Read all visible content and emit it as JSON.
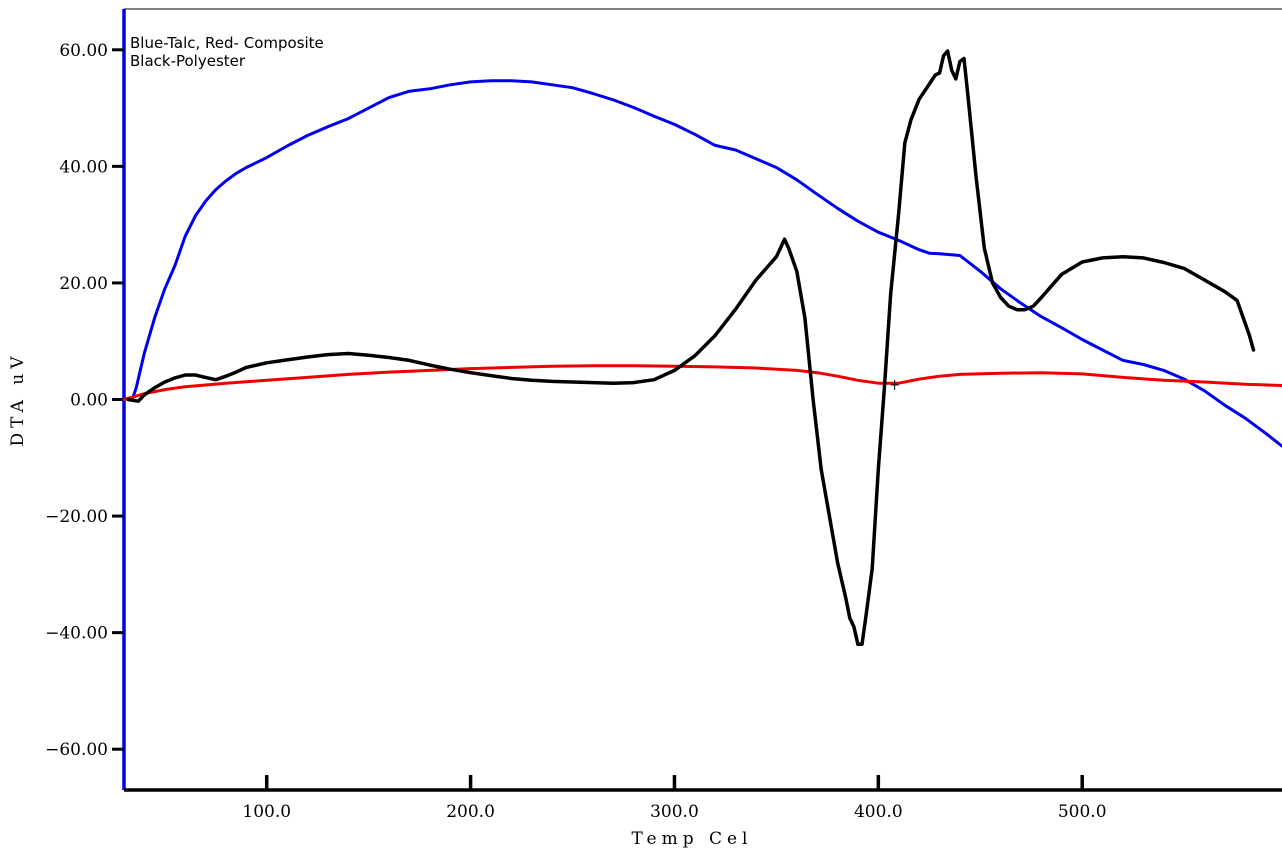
{
  "chart_data": {
    "type": "line",
    "title": "",
    "xlabel": "Temp Cel",
    "ylabel": "DTA uV",
    "xlim": [
      30,
      598
    ],
    "ylim": [
      -67,
      67
    ],
    "x_ticks": [
      100,
      200,
      300,
      400,
      500
    ],
    "x_tick_labels": [
      "100.0",
      "200.0",
      "300.0",
      "400.0",
      "500.0"
    ],
    "y_ticks": [
      60,
      40,
      20,
      0,
      -20,
      -40,
      -60
    ],
    "y_tick_labels": [
      "60.00",
      "40.00",
      "20.00",
      "0.00",
      "−20.00",
      "−40.00",
      "−60.00"
    ],
    "grid": false,
    "legend_lines": [
      "Blue-Talc, Red- Composite",
      "Black-Polyester"
    ],
    "legend_position": "top-left",
    "series": [
      {
        "color": "#0000ee",
        "points": [
          [
            34,
            0
          ],
          [
            36,
            2
          ],
          [
            40,
            8
          ],
          [
            45,
            14
          ],
          [
            50,
            19
          ],
          [
            55,
            23
          ],
          [
            60,
            28
          ],
          [
            65,
            31.5
          ],
          [
            70,
            34
          ],
          [
            75,
            36
          ],
          [
            80,
            37.5
          ],
          [
            85,
            38.8
          ],
          [
            90,
            39.8
          ],
          [
            100,
            41.5
          ],
          [
            110,
            43.5
          ],
          [
            120,
            45.3
          ],
          [
            130,
            46.8
          ],
          [
            140,
            48.2
          ],
          [
            150,
            50
          ],
          [
            160,
            51.8
          ],
          [
            170,
            52.9
          ],
          [
            180,
            53.3
          ],
          [
            190,
            54
          ],
          [
            200,
            54.5
          ],
          [
            210,
            54.7
          ],
          [
            220,
            54.7
          ],
          [
            230,
            54.5
          ],
          [
            240,
            54
          ],
          [
            250,
            53.5
          ],
          [
            260,
            52.5
          ],
          [
            270,
            51.4
          ],
          [
            280,
            50.1
          ],
          [
            290,
            48.6
          ],
          [
            300,
            47.2
          ],
          [
            310,
            45.5
          ],
          [
            320,
            43.6
          ],
          [
            330,
            42.8
          ],
          [
            340,
            41.3
          ],
          [
            350,
            39.8
          ],
          [
            360,
            37.7
          ],
          [
            370,
            35.2
          ],
          [
            380,
            32.8
          ],
          [
            390,
            30.6
          ],
          [
            400,
            28.7
          ],
          [
            410,
            27.3
          ],
          [
            420,
            25.7
          ],
          [
            425,
            25.1
          ],
          [
            430,
            25
          ],
          [
            440,
            24.7
          ],
          [
            450,
            22
          ],
          [
            460,
            19
          ],
          [
            470,
            16.5
          ],
          [
            480,
            14.2
          ],
          [
            490,
            12.3
          ],
          [
            500,
            10.3
          ],
          [
            510,
            8.5
          ],
          [
            520,
            6.7
          ],
          [
            530,
            6
          ],
          [
            540,
            5
          ],
          [
            550,
            3.5
          ],
          [
            560,
            1.5
          ],
          [
            570,
            -1
          ],
          [
            580,
            -3.2
          ],
          [
            590,
            -5.8
          ],
          [
            598,
            -8
          ]
        ]
      },
      {
        "color": "#ee0000",
        "points": [
          [
            30,
            0
          ],
          [
            40,
            1
          ],
          [
            50,
            1.7
          ],
          [
            60,
            2.2
          ],
          [
            80,
            2.8
          ],
          [
            100,
            3.3
          ],
          [
            120,
            3.8
          ],
          [
            140,
            4.3
          ],
          [
            160,
            4.7
          ],
          [
            180,
            5
          ],
          [
            200,
            5.3
          ],
          [
            220,
            5.5
          ],
          [
            240,
            5.7
          ],
          [
            260,
            5.8
          ],
          [
            280,
            5.8
          ],
          [
            300,
            5.7
          ],
          [
            320,
            5.6
          ],
          [
            340,
            5.4
          ],
          [
            360,
            5
          ],
          [
            370,
            4.6
          ],
          [
            380,
            4
          ],
          [
            390,
            3.3
          ],
          [
            400,
            2.8
          ],
          [
            410,
            2.8
          ],
          [
            420,
            3.5
          ],
          [
            430,
            4
          ],
          [
            440,
            4.3
          ],
          [
            460,
            4.5
          ],
          [
            480,
            4.6
          ],
          [
            500,
            4.4
          ],
          [
            520,
            3.8
          ],
          [
            540,
            3.3
          ],
          [
            560,
            3
          ],
          [
            580,
            2.6
          ],
          [
            598,
            2.4
          ]
        ]
      },
      {
        "color": "#000000",
        "points": [
          [
            32,
            0
          ],
          [
            37,
            -0.3
          ],
          [
            40,
            0.8
          ],
          [
            45,
            2
          ],
          [
            50,
            3
          ],
          [
            55,
            3.7
          ],
          [
            60,
            4.2
          ],
          [
            65,
            4.2
          ],
          [
            70,
            3.8
          ],
          [
            75,
            3.4
          ],
          [
            80,
            4
          ],
          [
            85,
            4.7
          ],
          [
            90,
            5.5
          ],
          [
            100,
            6.3
          ],
          [
            110,
            6.8
          ],
          [
            120,
            7.3
          ],
          [
            130,
            7.7
          ],
          [
            140,
            7.9
          ],
          [
            150,
            7.6
          ],
          [
            160,
            7.2
          ],
          [
            170,
            6.7
          ],
          [
            180,
            5.9
          ],
          [
            190,
            5.2
          ],
          [
            200,
            4.6
          ],
          [
            210,
            4.1
          ],
          [
            220,
            3.6
          ],
          [
            230,
            3.3
          ],
          [
            240,
            3.1
          ],
          [
            250,
            3
          ],
          [
            260,
            2.9
          ],
          [
            270,
            2.8
          ],
          [
            280,
            2.9
          ],
          [
            290,
            3.4
          ],
          [
            300,
            5
          ],
          [
            310,
            7.5
          ],
          [
            320,
            11
          ],
          [
            330,
            15.5
          ],
          [
            340,
            20.5
          ],
          [
            345,
            22.5
          ],
          [
            350,
            24.5
          ],
          [
            352,
            26
          ],
          [
            354,
            27.5
          ],
          [
            356,
            26
          ],
          [
            360,
            22
          ],
          [
            364,
            14
          ],
          [
            368,
            0
          ],
          [
            372,
            -12
          ],
          [
            376,
            -20
          ],
          [
            380,
            -28
          ],
          [
            384,
            -34
          ],
          [
            386,
            -37.5
          ],
          [
            388,
            -39
          ],
          [
            390,
            -42
          ],
          [
            392,
            -42
          ],
          [
            394,
            -37
          ],
          [
            397,
            -29
          ],
          [
            400,
            -12
          ],
          [
            403,
            2
          ],
          [
            406,
            18
          ],
          [
            410,
            32
          ],
          [
            413,
            44
          ],
          [
            416,
            48
          ],
          [
            420,
            51.5
          ],
          [
            424,
            53.6
          ],
          [
            428,
            55.7
          ],
          [
            430,
            56
          ],
          [
            432,
            59
          ],
          [
            434,
            59.8
          ],
          [
            436,
            56.5
          ],
          [
            438,
            55
          ],
          [
            440,
            58
          ],
          [
            442,
            58.5
          ],
          [
            444,
            52
          ],
          [
            448,
            38
          ],
          [
            452,
            26
          ],
          [
            456,
            20
          ],
          [
            460,
            17.5
          ],
          [
            464,
            16
          ],
          [
            468,
            15.4
          ],
          [
            472,
            15.4
          ],
          [
            476,
            16
          ],
          [
            480,
            17.5
          ],
          [
            485,
            19.5
          ],
          [
            490,
            21.5
          ],
          [
            500,
            23.6
          ],
          [
            510,
            24.3
          ],
          [
            520,
            24.5
          ],
          [
            530,
            24.3
          ],
          [
            540,
            23.5
          ],
          [
            550,
            22.5
          ],
          [
            560,
            20.5
          ],
          [
            570,
            18.5
          ],
          [
            576,
            17
          ],
          [
            580,
            13
          ],
          [
            582,
            11
          ],
          [
            584,
            8.5
          ]
        ]
      }
    ],
    "markers": [
      {
        "label": "+",
        "x": 408,
        "y": 2.5
      }
    ]
  }
}
